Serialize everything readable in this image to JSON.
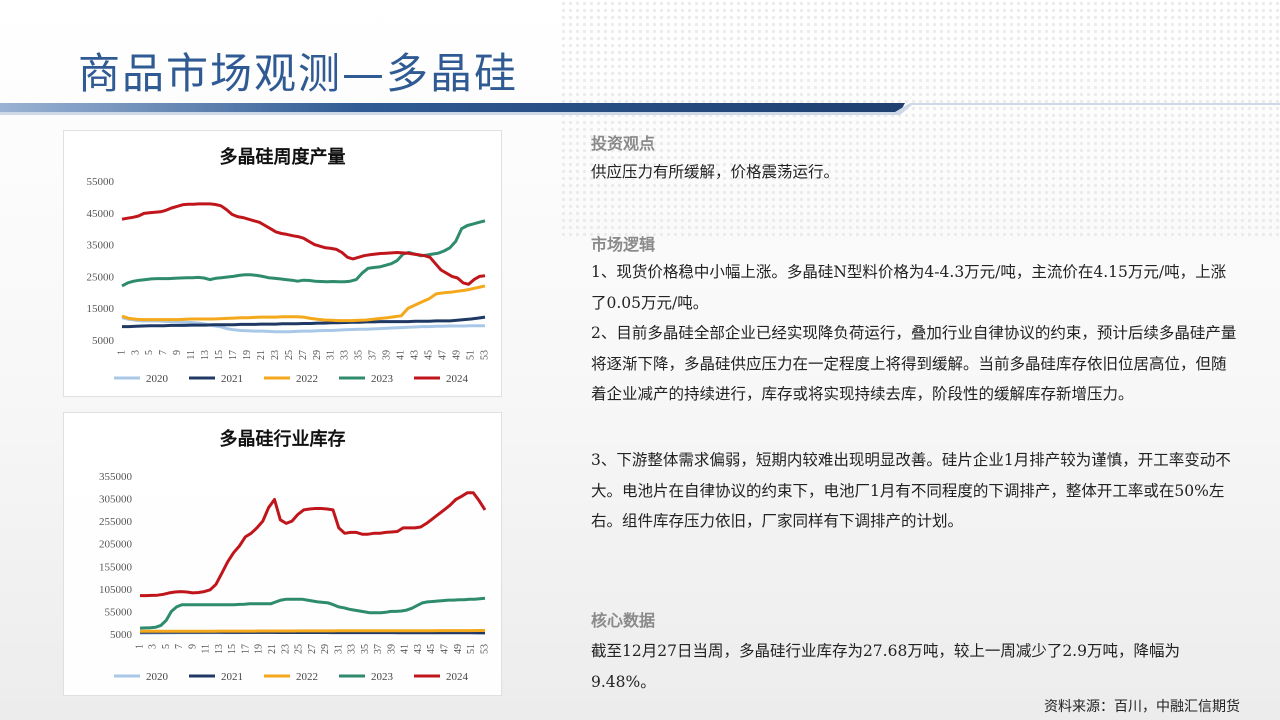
{
  "page": {
    "title": "商品市场观测—多晶硅",
    "source": "资料来源：百川，中融汇信期货"
  },
  "analysis": {
    "section1_title": "投资观点",
    "section1_text": "供应压力有所缓解，价格震荡运行。",
    "section2_title": "市场逻辑",
    "point1": "1、现货价格稳中小幅上涨。多晶硅N型料价格为4-4.3万元/吨，主流价在4.15万元/吨，上涨了0.05万元/吨。",
    "point2": "2、目前多晶硅全部企业已经实现降负荷运行，叠加行业自律协议的约束，预计后续多晶硅产量将逐渐下降，多晶硅供应压力在一定程度上将得到缓解。当前多晶硅库存依旧位居高位，但随着企业减产的持续进行，库存或将实现持续去库，阶段性的缓解库存新增压力。",
    "point3": "3、下游整体需求偏弱，短期内较难出现明显改善。硅片企业1月排产较为谨慎，开工率变动不大。电池片在自律协议的约束下，电池厂1月有不同程度的下调排产，整体开工率或在50%左右。组件库存压力依旧，厂家同样有下调排产的计划。",
    "section3_title": "核心数据",
    "core_text": "截至12月27日当周，多晶硅行业库存为27.68万吨，较上一周减少了2.9万吨，降幅为9.48%。"
  },
  "chart_data": [
    {
      "type": "line",
      "title": "多晶硅周度产量",
      "ylim": [
        5000,
        55000
      ],
      "yticks": [
        "55000",
        "45000",
        "35000",
        "25000",
        "15000",
        "5000"
      ],
      "xticks": [
        "1",
        "3",
        "5",
        "7",
        "9",
        "11",
        "13",
        "15",
        "17",
        "19",
        "21",
        "23",
        "25",
        "27",
        "29",
        "31",
        "33",
        "35",
        "37",
        "39",
        "41",
        "43",
        "45",
        "47",
        "49",
        "51",
        "53"
      ],
      "legend_position": "bottom",
      "series": [
        {
          "name": "2020",
          "color": "#a9c8e8",
          "values": [
            12000,
            11500,
            11200,
            11000,
            11000,
            11000,
            10900,
            10800,
            10700,
            10600,
            10500,
            10300,
            10000,
            9500,
            9200,
            8600,
            8200,
            8000,
            7900,
            7800,
            7800,
            7700,
            7600,
            7600,
            7600,
            7700,
            7800,
            7800,
            7900,
            8000,
            8000,
            8100,
            8200,
            8300,
            8400,
            8400,
            8500,
            8600,
            8700,
            8800,
            8900,
            9000,
            9100,
            9200,
            9200,
            9300,
            9300,
            9400,
            9400,
            9400,
            9500,
            9500,
            9500
          ]
        },
        {
          "name": "2021",
          "color": "#1f3864",
          "values": [
            9200,
            9200,
            9300,
            9400,
            9500,
            9500,
            9500,
            9600,
            9600,
            9600,
            9700,
            9700,
            9700,
            9800,
            9800,
            9800,
            9800,
            9900,
            9900,
            9900,
            10000,
            10000,
            10000,
            10100,
            10100,
            10100,
            10200,
            10200,
            10300,
            10300,
            10400,
            10400,
            10500,
            10600,
            10600,
            10700,
            10700,
            10800,
            10800,
            10800,
            10800,
            10800,
            10900,
            10900,
            10900,
            11000,
            11000,
            11000,
            11200,
            11400,
            11600,
            11900,
            12200
          ]
        },
        {
          "name": "2022",
          "color": "#f4a81c",
          "values": [
            12500,
            11800,
            11500,
            11400,
            11400,
            11400,
            11400,
            11400,
            11400,
            11500,
            11600,
            11600,
            11600,
            11600,
            11700,
            11800,
            11900,
            12000,
            12000,
            12100,
            12200,
            12200,
            12200,
            12300,
            12300,
            12300,
            12200,
            11800,
            11500,
            11300,
            11200,
            11100,
            11100,
            11100,
            11200,
            11300,
            11500,
            11800,
            12000,
            12300,
            12600,
            15000,
            16000,
            17000,
            18000,
            19500,
            19800,
            20000,
            20300,
            20600,
            21000,
            21500,
            22000
          ]
        },
        {
          "name": "2023",
          "color": "#2e8b6e",
          "values": [
            22000,
            23000,
            23500,
            23800,
            24000,
            24200,
            24300,
            24300,
            24300,
            24400,
            24500,
            24600,
            24600,
            24700,
            24500,
            24000,
            24400,
            24600,
            24800,
            25000,
            25300,
            25500,
            25500,
            25300,
            25000,
            24600,
            24400,
            24200,
            24000,
            23800,
            23500,
            23800,
            23700,
            23500,
            23400,
            23300,
            23400,
            23300,
            23300,
            23500,
            24000,
            26000,
            27500,
            27800,
            28000,
            28500,
            29000,
            30000,
            32000,
            32500,
            32000,
            31500,
            31700,
            32000,
            32300,
            33000,
            34000,
            36000,
            40000,
            41000,
            41500,
            42000,
            42500
          ]
        },
        {
          "name": "2024",
          "color": "#c0161b",
          "values": [
            43000,
            43300,
            43600,
            44000,
            44800,
            45000,
            45200,
            45300,
            45800,
            46500,
            47000,
            47500,
            47700,
            47700,
            47800,
            47800,
            47800,
            47600,
            47200,
            46000,
            44500,
            43800,
            43500,
            43000,
            42500,
            42000,
            41000,
            40000,
            39000,
            38500,
            38200,
            37800,
            37500,
            37000,
            36000,
            35000,
            34500,
            34000,
            33800,
            33500,
            32500,
            31000,
            30500,
            31000,
            31500,
            31800,
            32000,
            32200,
            32300,
            32400,
            32500,
            32400,
            32300,
            32000,
            31800,
            31500,
            31000,
            29000,
            27000,
            26000,
            25000,
            24500,
            23000,
            22500,
            24000,
            25000,
            25200
          ]
        }
      ]
    },
    {
      "type": "line",
      "title": "多晶硅行业库存",
      "ylim": [
        5000,
        355000
      ],
      "yticks": [
        "355000",
        "305000",
        "255000",
        "205000",
        "155000",
        "105000",
        "55000",
        "5000"
      ],
      "xticks": [
        "1",
        "3",
        "5",
        "7",
        "9",
        "11",
        "13",
        "15",
        "17",
        "19",
        "21",
        "23",
        "25",
        "27",
        "29",
        "31",
        "33",
        "35",
        "37",
        "39",
        "41",
        "43",
        "45",
        "47",
        "49",
        "51",
        "53"
      ],
      "legend_position": "bottom",
      "series": [
        {
          "name": "2020",
          "color": "#a9c8e8",
          "values": [
            7000,
            7000,
            7200,
            7300,
            7400,
            7500,
            7600,
            7700,
            7800,
            7900,
            8000,
            8000,
            8100,
            8100,
            8200,
            8200,
            8300,
            8300,
            8300,
            8300,
            8300,
            8300,
            8400,
            8400,
            8400,
            8400,
            8400,
            8500,
            8500,
            8500,
            8500,
            8500,
            8600,
            8600,
            8600,
            8600,
            8600,
            8600,
            8700,
            8700,
            8700,
            8700,
            8700,
            8800,
            8800,
            8800,
            8800,
            8800,
            8800,
            8800,
            8800,
            8800,
            8800
          ]
        },
        {
          "name": "2021",
          "color": "#1f3864",
          "values": [
            9000,
            9000,
            9000,
            8900,
            8900,
            8900,
            8800,
            8800,
            8800,
            8700,
            8700,
            8700,
            8700,
            8600,
            8600,
            8600,
            8600,
            8500,
            8500,
            8500,
            8500,
            8400,
            8400,
            8400,
            8400,
            8300,
            8300,
            8300,
            8300,
            8200,
            8200,
            8200,
            8100,
            8100,
            8100,
            8100,
            8000,
            8000,
            8000,
            7900,
            7900,
            7900,
            7800,
            7800,
            7800,
            7700,
            7700,
            7700,
            7600,
            7600,
            7600,
            7500,
            7500
          ]
        },
        {
          "name": "2022",
          "color": "#f4a81c",
          "values": [
            11000,
            11000,
            11000,
            11100,
            11100,
            11100,
            11200,
            11200,
            11200,
            11300,
            11300,
            11300,
            11400,
            11400,
            11400,
            11500,
            11500,
            11500,
            11600,
            11600,
            11600,
            11700,
            11700,
            11700,
            11800,
            11800,
            11800,
            11900,
            11900,
            11900,
            12000,
            12000,
            12000,
            12100,
            12100,
            12100,
            12200,
            12200,
            12200,
            12300,
            12300,
            12300,
            12400,
            12400,
            12400,
            12500,
            12500,
            12500,
            12600,
            12600,
            12600,
            12700,
            12700
          ]
        },
        {
          "name": "2023",
          "color": "#2e8b6e",
          "values": [
            18000,
            18500,
            19000,
            20000,
            24000,
            35000,
            55000,
            65000,
            70000,
            70000,
            70000,
            70000,
            70000,
            70000,
            70000,
            70000,
            70000,
            70000,
            70000,
            70500,
            71000,
            72000,
            72000,
            72000,
            72000,
            72000,
            76000,
            80000,
            82000,
            82000,
            82000,
            82000,
            80000,
            78000,
            76000,
            75000,
            74000,
            70000,
            65000,
            63000,
            60000,
            58000,
            56000,
            54000,
            52000,
            52000,
            52000,
            53000,
            55000,
            55000,
            56000,
            58000,
            62000,
            68000,
            74000,
            76000,
            77000,
            78000,
            79000,
            80000,
            80000,
            81000,
            81000,
            82000,
            82000,
            83000,
            84000
          ]
        },
        {
          "name": "2024",
          "color": "#c0161b",
          "values": [
            90000,
            90000,
            90500,
            91000,
            93000,
            96000,
            98000,
            99000,
            98000,
            96000,
            97000,
            99000,
            103000,
            115000,
            140000,
            165000,
            185000,
            200000,
            220000,
            228000,
            240000,
            255000,
            285000,
            303000,
            258000,
            250000,
            255000,
            270000,
            280000,
            282000,
            283000,
            283000,
            282000,
            280000,
            240000,
            228000,
            230000,
            230000,
            226000,
            226000,
            228000,
            228000,
            230000,
            231000,
            232000,
            240000,
            240000,
            240000,
            242000,
            250000,
            260000,
            270000,
            280000,
            290000,
            303000,
            310000,
            318000,
            318000,
            300000,
            280000
          ]
        }
      ]
    }
  ]
}
